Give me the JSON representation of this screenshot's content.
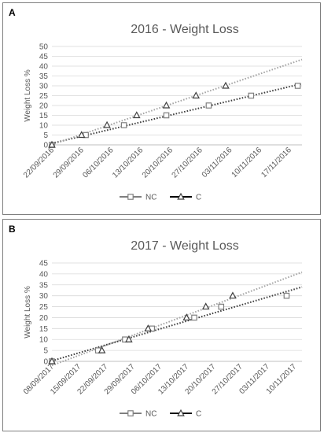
{
  "panels": [
    {
      "letter": "A",
      "chart_data": {
        "type": "scatter",
        "title": "2016 - Weight Loss",
        "ylabel": "Weight Loss %",
        "xlabel": "",
        "ylim": [
          0,
          50
        ],
        "yticks": [
          0,
          5,
          10,
          15,
          20,
          25,
          30,
          35,
          40,
          45,
          50
        ],
        "xlim": [
          "22/09/2016",
          "20/11/2016"
        ],
        "xticks": [
          "22/09/2016",
          "29/09/2016",
          "06/10/2016",
          "13/10/2016",
          "20/10/2016",
          "27/10/2016",
          "03/11/2016",
          "10/11/2016",
          "17/11/2016"
        ],
        "grid": "horizontal",
        "legend": "bottom-center",
        "series": [
          {
            "name": "NC",
            "marker": "square",
            "color": "#7f7f7f",
            "trendline": "linear dotted",
            "trend_color": "#404040",
            "x": [
              "22/09/2016",
              "30/09/2016",
              "09/10/2016",
              "19/10/2016",
              "29/10/2016",
              "08/11/2016",
              "19/11/2016"
            ],
            "y": [
              0,
              5,
              10,
              15,
              20,
              25,
              30
            ]
          },
          {
            "name": "C",
            "marker": "triangle",
            "color": "#404040",
            "trendline": "linear dotted",
            "trend_color": "#a6a6a6",
            "x": [
              "22/09/2016",
              "29/09/2016",
              "05/10/2016",
              "12/10/2016",
              "19/10/2016",
              "26/10/2016",
              "02/11/2016"
            ],
            "y": [
              0,
              5,
              10,
              15,
              20,
              25,
              30
            ]
          }
        ]
      }
    },
    {
      "letter": "B",
      "chart_data": {
        "type": "scatter",
        "title": "2017 - Weight Loss",
        "ylabel": "Weight Loss %",
        "xlabel": "",
        "ylim": [
          0,
          45
        ],
        "yticks": [
          0,
          5,
          10,
          15,
          20,
          25,
          30,
          35,
          40,
          45
        ],
        "xlim": [
          "08/09/2017",
          "12/11/2017"
        ],
        "xticks": [
          "08/09/2017",
          "15/09/2017",
          "22/09/2017",
          "29/09/2017",
          "06/10/2017",
          "13/10/2017",
          "20/10/2017",
          "27/10/2017",
          "03/11/2017",
          "10/11/2017"
        ],
        "grid": "horizontal",
        "legend": "bottom-center",
        "series": [
          {
            "name": "NC",
            "marker": "square",
            "color": "#7f7f7f",
            "trendline": "linear dotted",
            "trend_color": "#404040",
            "x": [
              "08/09/2017",
              "20/09/2017",
              "27/09/2017",
              "04/10/2017",
              "15/10/2017",
              "22/10/2017",
              "08/11/2017"
            ],
            "y": [
              0,
              5,
              10,
              15,
              20,
              25,
              30
            ]
          },
          {
            "name": "C",
            "marker": "triangle",
            "color": "#404040",
            "trendline": "linear dotted",
            "trend_color": "#a6a6a6",
            "x": [
              "08/09/2017",
              "21/09/2017",
              "28/09/2017",
              "03/10/2017",
              "13/10/2017",
              "18/10/2017",
              "25/10/2017"
            ],
            "y": [
              0,
              5,
              10,
              15,
              20,
              25,
              30
            ]
          }
        ]
      }
    }
  ]
}
